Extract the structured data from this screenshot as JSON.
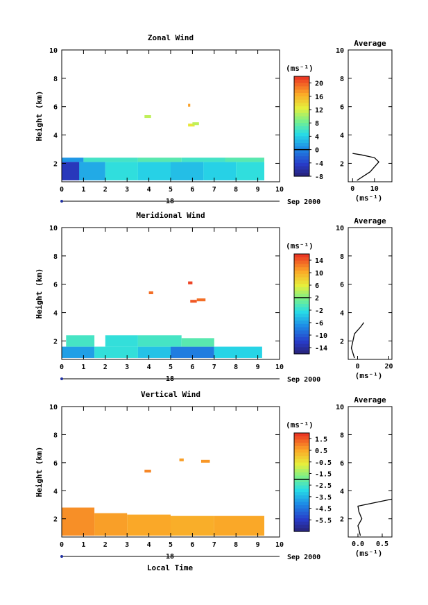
{
  "xaxis": {
    "range": [
      0,
      10
    ],
    "ticks": [
      "0",
      "1",
      "2",
      "3",
      "4",
      "5",
      "6",
      "7",
      "8",
      "9",
      "10"
    ],
    "day_label": "18",
    "date_label": "Sep 2000",
    "label": "Local Time"
  },
  "yaxis": {
    "label": "Height (km)",
    "range": [
      0.7,
      10
    ],
    "ticks": [
      "2",
      "4",
      "6",
      "8",
      "10"
    ]
  },
  "colorbar_unit": "(ms⁻¹)",
  "average_title": "Average",
  "average_unit": "(ms⁻¹)",
  "panels": [
    {
      "title": "Zonal Wind",
      "colorbar": {
        "min": -8,
        "max": 22,
        "zero": 0,
        "labels": [
          "20",
          "16",
          "12",
          "8",
          "4",
          "0",
          "-4",
          "-8"
        ],
        "label_values": [
          20,
          16,
          12,
          8,
          4,
          0,
          -4,
          -8
        ]
      },
      "avg_xrange": [
        -2,
        18
      ],
      "avg_ticks": [
        "0",
        "10"
      ],
      "avg_tick_values": [
        0,
        10
      ]
    },
    {
      "title": "Meridional Wind",
      "colorbar": {
        "min": -16,
        "max": 16,
        "zero": 2,
        "labels": [
          "14",
          "10",
          "6",
          "2",
          "-2",
          "-6",
          "-10",
          "-14"
        ],
        "label_values": [
          14,
          10,
          6,
          2,
          -2,
          -6,
          -10,
          -14
        ]
      },
      "avg_xrange": [
        -6,
        22
      ],
      "avg_ticks": [
        "0",
        "20"
      ],
      "avg_tick_values": [
        0,
        20
      ]
    },
    {
      "title": "Vertical Wind",
      "colorbar": {
        "min": -6.5,
        "max": 2.0,
        "zero": -2.0,
        "labels": [
          "1.5",
          "0.5",
          "-0.5",
          "-1.5",
          "-2.5",
          "-3.5",
          "-4.5",
          "-5.5"
        ],
        "label_values": [
          1.5,
          0.5,
          -0.5,
          -1.5,
          -2.5,
          -3.5,
          -4.5,
          -5.5
        ]
      },
      "avg_xrange": [
        -0.2,
        0.7
      ],
      "avg_ticks": [
        "0.0",
        "0.5"
      ],
      "avg_tick_values": [
        0,
        0.5
      ]
    }
  ],
  "chart_data": [
    {
      "type": "heatmap",
      "title": "Zonal Wind",
      "xlabel": "Local Time",
      "ylabel": "Height (km)",
      "xlim": [
        0,
        10
      ],
      "ylim": [
        0.7,
        10
      ],
      "colorbar_range": [
        -8,
        22
      ],
      "cells": [
        [
          0.0,
          1.0,
          0.8,
          2.1,
          -5
        ],
        [
          0.8,
          2.0,
          0.8,
          2.1,
          2
        ],
        [
          2.0,
          3.5,
          0.8,
          2.1,
          5
        ],
        [
          3.5,
          5.0,
          0.8,
          2.1,
          4
        ],
        [
          5.0,
          6.5,
          0.8,
          2.1,
          3
        ],
        [
          6.5,
          8.0,
          0.8,
          2.1,
          4
        ],
        [
          8.0,
          9.3,
          0.8,
          2.1,
          5
        ],
        [
          0.0,
          1.0,
          2.1,
          2.4,
          1
        ],
        [
          1.0,
          3.5,
          2.1,
          2.4,
          6
        ],
        [
          3.5,
          5.5,
          2.1,
          2.4,
          7
        ],
        [
          5.5,
          7.5,
          2.1,
          2.4,
          6
        ],
        [
          7.5,
          9.3,
          2.1,
          2.4,
          7
        ],
        [
          3.8,
          4.1,
          5.2,
          5.4,
          11
        ],
        [
          5.8,
          5.9,
          6.0,
          6.2,
          17
        ],
        [
          5.8,
          6.1,
          4.6,
          4.8,
          13
        ],
        [
          6.0,
          6.3,
          4.7,
          4.9,
          11
        ]
      ],
      "average_profile": {
        "x": [
          2,
          8,
          12,
          10,
          4,
          0
        ],
        "y": [
          0.8,
          1.4,
          2.1,
          2.4,
          2.6,
          2.7
        ]
      }
    },
    {
      "type": "heatmap",
      "title": "Meridional Wind",
      "xlabel": "Local Time",
      "ylabel": "Height (km)",
      "xlim": [
        0,
        10
      ],
      "ylim": [
        0.7,
        10
      ],
      "colorbar_range": [
        -16,
        16
      ],
      "cells": [
        [
          0.0,
          1.5,
          0.8,
          1.6,
          -6
        ],
        [
          1.5,
          3.5,
          0.8,
          1.6,
          -2
        ],
        [
          3.5,
          5.0,
          0.8,
          1.6,
          -4
        ],
        [
          5.0,
          7.0,
          0.8,
          1.6,
          -8
        ],
        [
          7.0,
          9.2,
          0.8,
          1.6,
          -3
        ],
        [
          0.2,
          1.5,
          1.6,
          2.4,
          -1
        ],
        [
          2.0,
          3.5,
          1.6,
          2.4,
          -2
        ],
        [
          3.5,
          5.5,
          1.6,
          2.4,
          -1
        ],
        [
          5.5,
          7.0,
          1.6,
          2.2,
          0
        ],
        [
          4.0,
          4.2,
          5.3,
          5.5,
          13
        ],
        [
          5.8,
          6.0,
          6.0,
          6.2,
          15
        ],
        [
          5.9,
          6.2,
          4.7,
          4.9,
          14
        ],
        [
          6.2,
          6.6,
          4.8,
          5.0,
          13
        ]
      ],
      "average_profile": {
        "x": [
          -2,
          -4,
          -3,
          -2,
          2,
          4
        ],
        "y": [
          0.8,
          1.5,
          2.0,
          2.5,
          3.0,
          3.3
        ]
      }
    },
    {
      "type": "heatmap",
      "title": "Vertical Wind",
      "xlabel": "Local Time",
      "ylabel": "Height (km)",
      "xlim": [
        0,
        10
      ],
      "ylim": [
        0.7,
        10
      ],
      "colorbar_range": [
        -6.5,
        2.0
      ],
      "cells": [
        [
          0.0,
          1.5,
          0.8,
          2.8,
          0.8
        ],
        [
          1.5,
          3.0,
          0.8,
          2.4,
          0.6
        ],
        [
          3.0,
          5.0,
          0.8,
          2.3,
          0.5
        ],
        [
          5.0,
          7.0,
          0.8,
          2.2,
          0.4
        ],
        [
          7.0,
          9.3,
          0.8,
          2.2,
          0.5
        ],
        [
          3.8,
          4.1,
          5.3,
          5.5,
          0.9
        ],
        [
          5.4,
          5.6,
          6.1,
          6.3,
          0.6
        ],
        [
          6.4,
          6.8,
          6.0,
          6.2,
          0.7
        ]
      ],
      "average_profile": {
        "x": [
          0.05,
          0.0,
          0.08,
          0.02,
          0.0,
          0.7
        ],
        "y": [
          0.8,
          1.5,
          2.0,
          2.5,
          2.9,
          3.4
        ]
      }
    }
  ]
}
